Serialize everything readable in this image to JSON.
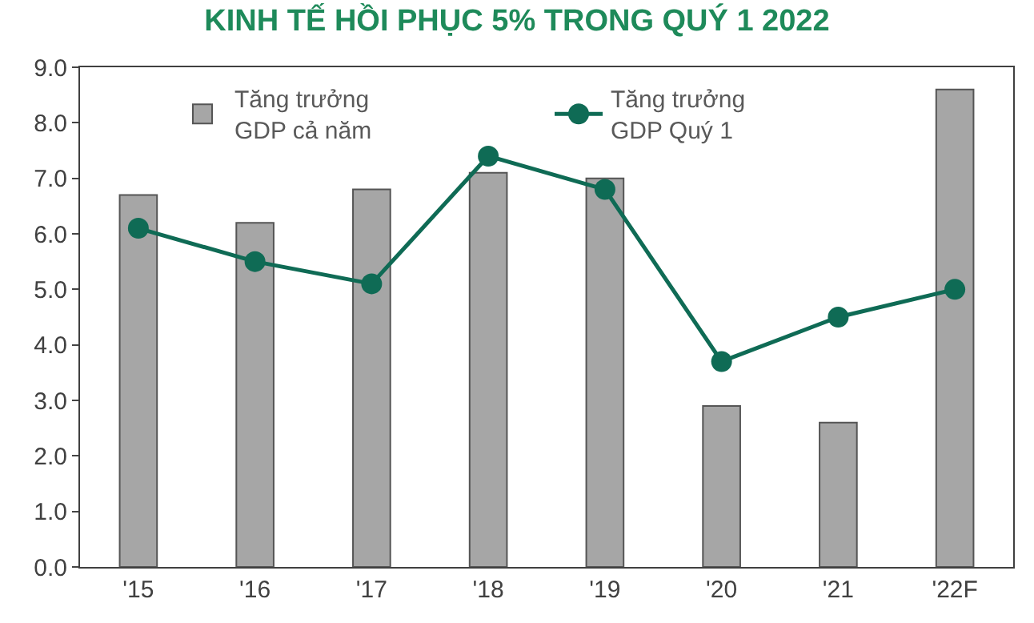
{
  "chart_data": {
    "type": "bar",
    "title": "KINH TẾ HỒI PHỤC 5% TRONG QUÝ 1 2022",
    "categories": [
      "'15",
      "'16",
      "'17",
      "'18",
      "'19",
      "'20",
      "'21",
      "'22F"
    ],
    "series": [
      {
        "name": "Tăng trưởng\nGDP cả năm",
        "color": "#a6a6a6",
        "values": [
          6.7,
          6.2,
          6.8,
          7.1,
          7.0,
          2.9,
          2.6,
          8.6
        ]
      },
      {
        "name": "Tăng trưởng\nGDP Quý 1",
        "type": "line",
        "color": "#0f6b55",
        "values": [
          6.1,
          5.5,
          5.1,
          7.4,
          6.8,
          3.7,
          4.5,
          5.0
        ]
      }
    ],
    "ylim": [
      0,
      9
    ],
    "yticks": [
      {
        "value": 0,
        "label": "0.0"
      },
      {
        "value": 1,
        "label": "1.0"
      },
      {
        "value": 2,
        "label": "2.0"
      },
      {
        "value": 3,
        "label": "3.0"
      },
      {
        "value": 4,
        "label": "4.0"
      },
      {
        "value": 5,
        "label": "5.0"
      },
      {
        "value": 6,
        "label": "6.0"
      },
      {
        "value": 7,
        "label": "7.0"
      },
      {
        "value": 8,
        "label": "8.0"
      },
      {
        "value": 9,
        "label": "9.0"
      }
    ],
    "legend": "top",
    "marker": "circle",
    "line_style": "solid"
  }
}
